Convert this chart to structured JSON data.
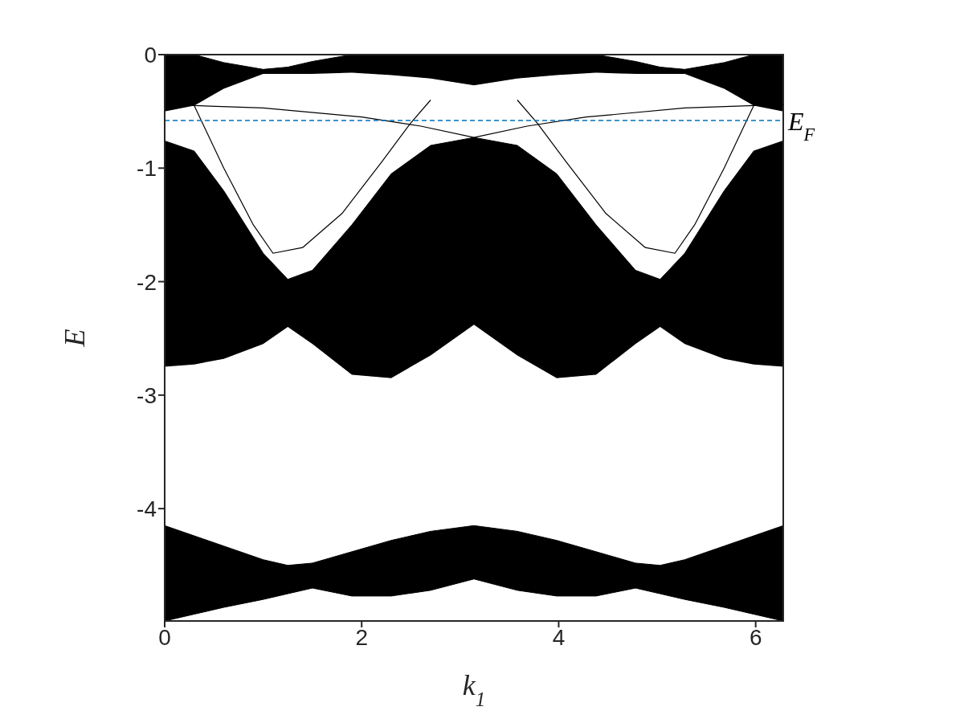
{
  "chart_data": {
    "type": "area",
    "stacked": true,
    "xlabel": "k$_{1}$",
    "ylabel": "E",
    "x": [
      0,
      0.3,
      0.6,
      1.0,
      1.25,
      1.5,
      1.9,
      2.3,
      2.7,
      3.14,
      3.58,
      3.98,
      4.38,
      4.78,
      5.03,
      5.28,
      5.68,
      5.98,
      6.28
    ],
    "xlim": [
      0,
      6.28
    ],
    "xticks": [
      0,
      2,
      4,
      6
    ],
    "ylim": [
      -4.99,
      0
    ],
    "yticks": [
      0,
      -1,
      -2,
      -3,
      -4
    ],
    "series": [
      {
        "color": "#ffffff",
        "values": [
          0,
          0,
          -0.07,
          -0.13,
          -0.11,
          -0.06,
          0,
          0,
          0,
          0,
          0,
          0,
          0,
          -0.06,
          -0.11,
          -0.13,
          -0.07,
          0,
          0
        ]
      },
      {
        "color": "#000000",
        "values": [
          -0.5,
          -0.45,
          -0.23,
          -0.04,
          -0.06,
          -0.11,
          -0.16,
          -0.18,
          -0.21,
          -0.27,
          -0.21,
          -0.18,
          -0.16,
          -0.11,
          -0.06,
          -0.04,
          -0.23,
          -0.45,
          -0.5
        ]
      },
      {
        "color": "#ffffff",
        "values": [
          -0.26,
          -0.4,
          -0.9,
          -1.58,
          -1.81,
          -1.73,
          -1.34,
          -0.87,
          -0.59,
          -0.46,
          -0.59,
          -0.87,
          -1.34,
          -1.73,
          -1.81,
          -1.58,
          -0.9,
          -0.4,
          -0.26
        ]
      },
      {
        "color": "#000000",
        "values": [
          -1.99,
          -1.88,
          -1.48,
          -0.8,
          -0.42,
          -0.65,
          -1.32,
          -1.8,
          -1.85,
          -1.65,
          -1.85,
          -1.8,
          -1.32,
          -0.65,
          -0.42,
          -0.8,
          -1.48,
          -1.88,
          -1.99
        ]
      },
      {
        "color": "#ffffff",
        "values": [
          -1.4,
          -1.51,
          -1.65,
          -1.9,
          -2.1,
          -1.93,
          -1.56,
          -1.43,
          -1.55,
          -1.77,
          -1.55,
          -1.43,
          -1.56,
          -1.93,
          -2.1,
          -1.9,
          -1.65,
          -1.51,
          -1.4
        ]
      },
      {
        "color": "#000000",
        "values": [
          -0.84,
          -0.69,
          -0.54,
          -0.35,
          -0.25,
          -0.22,
          -0.39,
          -0.49,
          -0.52,
          -0.47,
          -0.52,
          -0.49,
          -0.39,
          -0.22,
          -0.25,
          -0.35,
          -0.54,
          -0.69,
          -0.84
        ]
      },
      {
        "type": "line",
        "color": "#000000",
        "x": [
          0,
          1,
          2,
          2.6,
          3.14,
          3.68,
          4.28,
          5.28,
          6.28
        ],
        "values": [
          -0.44,
          -0.47,
          -0.55,
          -0.63,
          -0.73,
          -0.63,
          -0.55,
          -0.47,
          -0.44
        ]
      },
      {
        "type": "line",
        "color": "#000000",
        "x": [
          0.3,
          0.6,
          0.9,
          1.1,
          1.4,
          1.8,
          2.2,
          2.5,
          2.7
        ],
        "values": [
          -0.45,
          -1.0,
          -1.5,
          -1.75,
          -1.7,
          -1.4,
          -0.95,
          -0.6,
          -0.4
        ]
      },
      {
        "type": "line",
        "color": "#000000",
        "x": [
          3.58,
          3.78,
          4.08,
          4.48,
          4.88,
          5.18,
          5.38,
          5.68,
          5.98
        ],
        "values": [
          -0.4,
          -0.6,
          -0.95,
          -1.4,
          -1.7,
          -1.75,
          -1.5,
          -1.0,
          -0.45
        ]
      }
    ],
    "ref_lines": [
      {
        "axis": "y",
        "value": -0.58,
        "label": "E$_{F}$",
        "color": "#0072bd",
        "line_style": "dashed"
      }
    ]
  }
}
